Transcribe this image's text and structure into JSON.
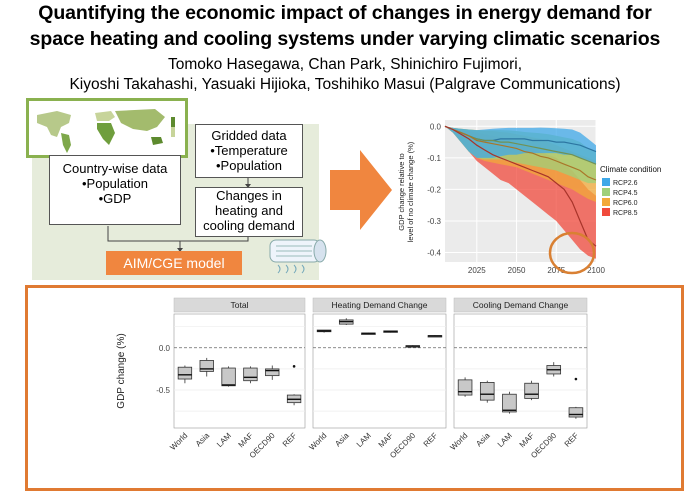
{
  "header": {
    "title_line1": "Quantifying the economic impact of changes in energy demand for",
    "title_line2": "space heating and cooling systems under varying climatic scenarios",
    "authors_line1": "Tomoko Hasegawa, Chan Park, Shinichiro Fujimori,",
    "authors_line2": "Kiyoshi Takahashi, Yasuaki Hijioka, Toshihiko Masui (Palgrave Communications)"
  },
  "flow": {
    "country_lines": [
      "Country-wise data",
      "•Population",
      "•GDP"
    ],
    "gridded_lines": [
      "Gridded data",
      "•Temperature",
      "•Population"
    ],
    "changes_lines": [
      "Changes in",
      "heating and",
      "cooling demand"
    ],
    "model_label": "AIM/CGE model"
  },
  "colors": {
    "accent": "#f0863f",
    "frame": "#e07a32",
    "panel": "#e6ecdb",
    "map_border": "#8ab14f",
    "RCP2.6": "#3fa8e8",
    "RCP4.5": "#9fd07a",
    "RCP6.0": "#f2a93a",
    "RCP8.5": "#f04a3c"
  },
  "chart_data": [
    {
      "type": "area",
      "ylabel_line1": "GDP change relative to",
      "ylabel_line2": "level of no climate change (%)",
      "legend_title": "Climate condition",
      "legend_position": "right",
      "x_ticks": [
        "2025",
        "2050",
        "2075",
        "2100"
      ],
      "y_ticks": [
        "0.0",
        "-0.1",
        "-0.2",
        "-0.3",
        "-0.4"
      ],
      "xlim": [
        2005,
        2100
      ],
      "ylim": [
        -0.43,
        0.02
      ],
      "x": [
        2005,
        2010,
        2015,
        2020,
        2025,
        2030,
        2035,
        2040,
        2045,
        2050,
        2055,
        2060,
        2065,
        2070,
        2075,
        2080,
        2085,
        2090,
        2095,
        2100
      ],
      "series": [
        {
          "name": "RCP2.6",
          "upper": [
            0,
            -0.005,
            -0.008,
            -0.01,
            -0.012,
            -0.01,
            -0.008,
            -0.006,
            -0.005,
            -0.005,
            -0.005,
            -0.005,
            -0.004,
            -0.005,
            -0.006,
            -0.008,
            -0.01,
            -0.02,
            -0.04,
            -0.06
          ],
          "lower": [
            0,
            -0.02,
            -0.05,
            -0.08,
            -0.1,
            -0.1,
            -0.1,
            -0.095,
            -0.09,
            -0.09,
            -0.085,
            -0.085,
            -0.085,
            -0.085,
            -0.085,
            -0.09,
            -0.09,
            -0.1,
            -0.11,
            -0.12
          ],
          "mid": [
            0,
            -0.01,
            -0.02,
            -0.03,
            -0.04,
            -0.045,
            -0.045,
            -0.04,
            -0.04,
            -0.04,
            -0.04,
            -0.045,
            -0.045,
            -0.045,
            -0.05,
            -0.05,
            -0.055,
            -0.06,
            -0.07,
            -0.08
          ]
        },
        {
          "name": "RCP4.5",
          "upper": [
            0,
            -0.005,
            -0.008,
            -0.01,
            -0.012,
            -0.012,
            -0.012,
            -0.012,
            -0.013,
            -0.015,
            -0.018,
            -0.02,
            -0.022,
            -0.025,
            -0.03,
            -0.035,
            -0.04,
            -0.05,
            -0.07,
            -0.08
          ],
          "lower": [
            0,
            -0.02,
            -0.05,
            -0.08,
            -0.1,
            -0.105,
            -0.105,
            -0.105,
            -0.11,
            -0.115,
            -0.12,
            -0.125,
            -0.13,
            -0.135,
            -0.14,
            -0.15,
            -0.16,
            -0.17,
            -0.18,
            -0.18
          ],
          "mid": [
            0,
            -0.01,
            -0.02,
            -0.03,
            -0.04,
            -0.045,
            -0.045,
            -0.05,
            -0.05,
            -0.055,
            -0.06,
            -0.065,
            -0.07,
            -0.075,
            -0.08,
            -0.085,
            -0.09,
            -0.1,
            -0.11,
            -0.12
          ]
        },
        {
          "name": "RCP6.0",
          "upper": [
            0,
            -0.005,
            -0.008,
            -0.01,
            -0.012,
            -0.015,
            -0.015,
            -0.018,
            -0.02,
            -0.025,
            -0.03,
            -0.035,
            -0.04,
            -0.05,
            -0.06,
            -0.07,
            -0.08,
            -0.09,
            -0.1,
            -0.11
          ],
          "lower": [
            0,
            -0.02,
            -0.05,
            -0.08,
            -0.1,
            -0.11,
            -0.115,
            -0.12,
            -0.125,
            -0.13,
            -0.14,
            -0.15,
            -0.16,
            -0.17,
            -0.18,
            -0.19,
            -0.2,
            -0.215,
            -0.23,
            -0.24
          ],
          "mid": [
            0,
            -0.01,
            -0.02,
            -0.03,
            -0.045,
            -0.05,
            -0.055,
            -0.06,
            -0.065,
            -0.07,
            -0.08,
            -0.085,
            -0.095,
            -0.1,
            -0.11,
            -0.12,
            -0.13,
            -0.14,
            -0.16,
            -0.17
          ]
        },
        {
          "name": "RCP8.5",
          "upper": [
            0,
            -0.005,
            -0.01,
            -0.015,
            -0.02,
            -0.025,
            -0.03,
            -0.035,
            -0.04,
            -0.05,
            -0.06,
            -0.07,
            -0.08,
            -0.09,
            -0.1,
            -0.12,
            -0.14,
            -0.17,
            -0.2,
            -0.22
          ],
          "lower": [
            0,
            -0.02,
            -0.05,
            -0.08,
            -0.11,
            -0.13,
            -0.15,
            -0.17,
            -0.18,
            -0.2,
            -0.22,
            -0.24,
            -0.26,
            -0.28,
            -0.3,
            -0.33,
            -0.36,
            -0.39,
            -0.41,
            -0.42
          ],
          "mid": [
            0,
            -0.01,
            -0.025,
            -0.04,
            -0.06,
            -0.075,
            -0.09,
            -0.1,
            -0.11,
            -0.12,
            -0.13,
            -0.14,
            -0.15,
            -0.16,
            -0.18,
            -0.2,
            -0.24,
            -0.3,
            -0.36,
            -0.38
          ]
        }
      ]
    },
    {
      "type": "box",
      "ylabel": "GDP change (%)",
      "categories": [
        "World",
        "Asia",
        "LAM",
        "MAF",
        "OECD90",
        "REF"
      ],
      "y_ticks": [
        "0.0",
        "-0.5"
      ],
      "ylim": [
        -0.95,
        0.4
      ],
      "panels": [
        {
          "title": "Total",
          "boxes": [
            {
              "min": -0.42,
              "q1": -0.37,
              "median": -0.32,
              "q3": -0.23,
              "max": -0.21
            },
            {
              "min": -0.34,
              "q1": -0.28,
              "median": -0.25,
              "q3": -0.15,
              "max": -0.12
            },
            {
              "min": -0.46,
              "q1": -0.45,
              "median": -0.44,
              "q3": -0.24,
              "max": -0.22
            },
            {
              "min": -0.42,
              "q1": -0.39,
              "median": -0.35,
              "q3": -0.24,
              "max": -0.22
            },
            {
              "min": -0.38,
              "q1": -0.33,
              "median": -0.27,
              "q3": -0.25,
              "max": -0.21
            },
            {
              "min": -0.68,
              "q1": -0.65,
              "median": -0.61,
              "q3": -0.56,
              "max": -0.55,
              "outlier": -0.22
            }
          ]
        },
        {
          "title": "Heating Demand Change",
          "boxes": [
            {
              "min": 0.18,
              "q1": 0.19,
              "median": 0.2,
              "q3": 0.21,
              "max": 0.21
            },
            {
              "min": 0.27,
              "q1": 0.28,
              "median": 0.31,
              "q3": 0.33,
              "max": 0.35
            },
            {
              "min": 0.16,
              "q1": 0.165,
              "median": 0.17,
              "q3": 0.175,
              "max": 0.18
            },
            {
              "min": 0.18,
              "q1": 0.19,
              "median": 0.195,
              "q3": 0.2,
              "max": 0.205
            },
            {
              "min": 0.01,
              "q1": 0.015,
              "median": 0.02,
              "q3": 0.025,
              "max": 0.03
            },
            {
              "min": 0.13,
              "q1": 0.135,
              "median": 0.14,
              "q3": 0.145,
              "max": 0.15
            }
          ]
        },
        {
          "title": "Cooling Demand Change",
          "boxes": [
            {
              "min": -0.58,
              "q1": -0.56,
              "median": -0.52,
              "q3": -0.38,
              "max": -0.35
            },
            {
              "min": -0.65,
              "q1": -0.62,
              "median": -0.55,
              "q3": -0.41,
              "max": -0.39
            },
            {
              "min": -0.78,
              "q1": -0.76,
              "median": -0.74,
              "q3": -0.55,
              "max": -0.52
            },
            {
              "min": -0.62,
              "q1": -0.6,
              "median": -0.55,
              "q3": -0.42,
              "max": -0.39
            },
            {
              "min": -0.34,
              "q1": -0.31,
              "median": -0.26,
              "q3": -0.21,
              "max": -0.17
            },
            {
              "min": -0.84,
              "q1": -0.82,
              "median": -0.79,
              "q3": -0.71,
              "max": -0.7,
              "outlier": -0.37
            }
          ]
        }
      ]
    }
  ]
}
